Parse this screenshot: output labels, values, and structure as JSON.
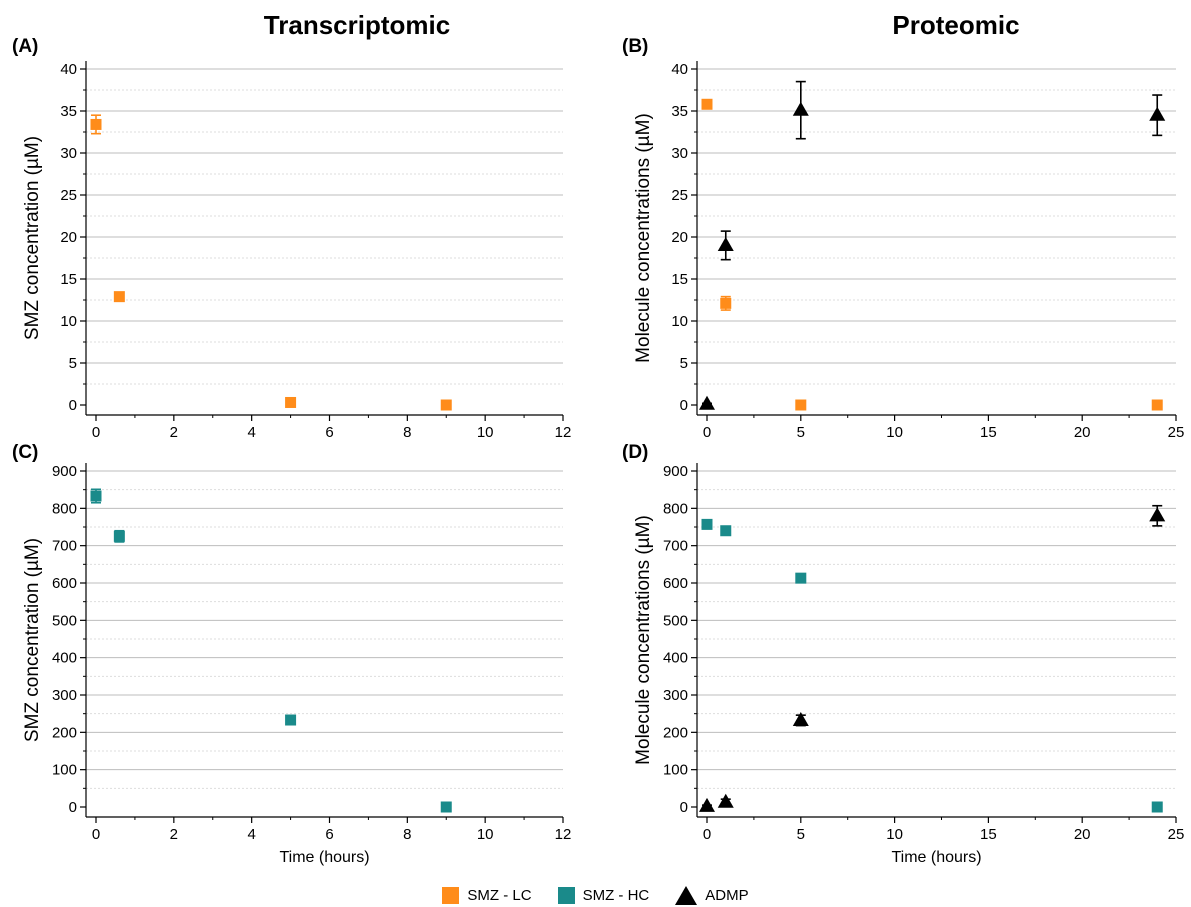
{
  "columns": {
    "left_title": "Transcriptomic",
    "right_title": "Proteomic"
  },
  "legend": [
    {
      "label": "SMZ - LC",
      "color": "#ff8c1a",
      "marker": "square"
    },
    {
      "label": "SMZ - HC",
      "color": "#1a8a8a",
      "marker": "square"
    },
    {
      "label": "ADMP",
      "color": "#000000",
      "marker": "triangle"
    }
  ],
  "colors": {
    "smz_lc": "#ff8c1a",
    "smz_hc": "#1a8a8a",
    "admp": "#000000",
    "grid": "#bdbdbd",
    "minor_grid": "#dddddd"
  },
  "chart_data": [
    {
      "panel": "(A)",
      "type": "scatter",
      "ylabel": "SMZ concentration (µM)",
      "xlabel": "",
      "xlim": [
        0,
        12
      ],
      "ylim": [
        0,
        40
      ],
      "xticks": [
        0,
        2,
        4,
        6,
        8,
        10,
        12
      ],
      "yticks": [
        0,
        5,
        10,
        15,
        20,
        25,
        30,
        35,
        40
      ],
      "series": [
        {
          "key": "smz_lc",
          "marker": "square",
          "points": [
            {
              "x": 0,
              "y": 33.4,
              "err": 1.1
            },
            {
              "x": 0.6,
              "y": 12.9,
              "err": 0.5
            },
            {
              "x": 5,
              "y": 0.3,
              "err": 0.2
            },
            {
              "x": 9,
              "y": 0,
              "err": 0.2
            }
          ]
        }
      ]
    },
    {
      "panel": "(B)",
      "type": "scatter",
      "ylabel": "Molecule concentrations (µM)",
      "xlabel": "",
      "xlim": [
        0,
        25
      ],
      "ylim": [
        0,
        40
      ],
      "xticks": [
        0,
        5,
        10,
        15,
        20,
        25
      ],
      "yticks": [
        0,
        5,
        10,
        15,
        20,
        25,
        30,
        35,
        40
      ],
      "series": [
        {
          "key": "smz_lc",
          "marker": "square",
          "points": [
            {
              "x": 0,
              "y": 35.8,
              "err": 0.2
            },
            {
              "x": 1,
              "y": 12.1,
              "err": 0.8
            },
            {
              "x": 5,
              "y": 0,
              "err": 0.1
            },
            {
              "x": 24,
              "y": 0,
              "err": 0.1
            }
          ]
        },
        {
          "key": "admp",
          "marker": "triangle",
          "points": [
            {
              "x": 0,
              "y": 0.1,
              "err": 0.1
            },
            {
              "x": 1,
              "y": 19.0,
              "err": 1.7
            },
            {
              "x": 5,
              "y": 35.1,
              "err": 3.4
            },
            {
              "x": 24,
              "y": 34.5,
              "err": 2.4
            }
          ]
        }
      ]
    },
    {
      "panel": "(C)",
      "type": "scatter",
      "ylabel": "SMZ concentration (µM)",
      "xlabel": "Time (hours)",
      "xlim": [
        0,
        12
      ],
      "ylim": [
        0,
        900
      ],
      "xticks": [
        0,
        2,
        4,
        6,
        8,
        10,
        12
      ],
      "yticks": [
        0,
        100,
        200,
        300,
        400,
        500,
        600,
        700,
        800,
        900
      ],
      "series": [
        {
          "key": "smz_hc",
          "marker": "square",
          "points": [
            {
              "x": 0,
              "y": 833,
              "err": 18
            },
            {
              "x": 0.6,
              "y": 725,
              "err": 15
            },
            {
              "x": 5,
              "y": 233,
              "err": 10
            },
            {
              "x": 9,
              "y": 0,
              "err": 4
            }
          ]
        }
      ]
    },
    {
      "panel": "(D)",
      "type": "scatter",
      "ylabel": "Molecule concentrations (µM)",
      "xlabel": "Time (hours)",
      "xlim": [
        0,
        25
      ],
      "ylim": [
        0,
        900
      ],
      "xticks": [
        0,
        5,
        10,
        15,
        20,
        25
      ],
      "yticks": [
        0,
        100,
        200,
        300,
        400,
        500,
        600,
        700,
        800,
        900
      ],
      "series": [
        {
          "key": "smz_hc",
          "marker": "square",
          "points": [
            {
              "x": 0,
              "y": 757,
              "err": 4
            },
            {
              "x": 1,
              "y": 740,
              "err": 6
            },
            {
              "x": 5,
              "y": 613,
              "err": 8
            },
            {
              "x": 24,
              "y": 0,
              "err": 4
            }
          ]
        },
        {
          "key": "admp",
          "marker": "triangle",
          "points": [
            {
              "x": 0,
              "y": 2,
              "err": 3
            },
            {
              "x": 1,
              "y": 13,
              "err": 8
            },
            {
              "x": 5,
              "y": 232,
              "err": 14
            },
            {
              "x": 24,
              "y": 780,
              "err": 27
            }
          ]
        }
      ]
    }
  ]
}
